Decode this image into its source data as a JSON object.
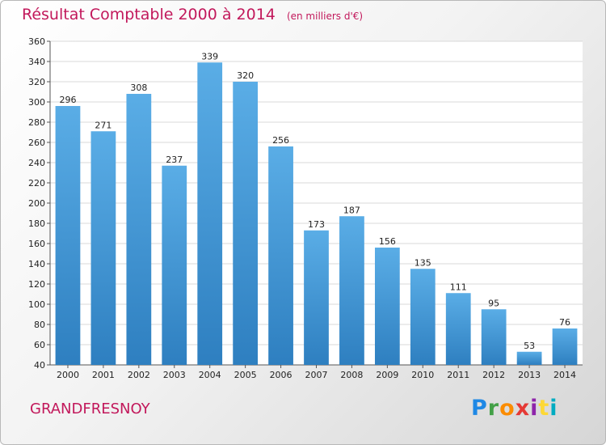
{
  "header": {
    "title": "Résultat Comptable 2000 à 2014",
    "unit": "(en milliers d'€)"
  },
  "footer": {
    "commune": "GRANDFRESNOY",
    "logo": [
      "P",
      "r",
      "o",
      "x",
      "i",
      "t",
      "i"
    ]
  },
  "colors": {
    "title": "#c2185b",
    "bar_top": "#5aade6",
    "bar_bottom": "#2e7fc0"
  },
  "chart_data": {
    "type": "bar",
    "title": "Résultat Comptable 2000 à 2014",
    "subtitle": "(en milliers d'€)",
    "xlabel": "",
    "ylabel": "",
    "categories": [
      "2000",
      "2001",
      "2002",
      "2003",
      "2004",
      "2005",
      "2006",
      "2007",
      "2008",
      "2009",
      "2010",
      "2011",
      "2012",
      "2013",
      "2014"
    ],
    "values": [
      296,
      271,
      308,
      237,
      339,
      320,
      256,
      173,
      187,
      156,
      135,
      111,
      95,
      53,
      76
    ],
    "ylim": [
      40,
      360
    ],
    "yticks": [
      40,
      60,
      80,
      100,
      120,
      140,
      160,
      180,
      200,
      220,
      240,
      260,
      280,
      300,
      320,
      340,
      360
    ],
    "grid": true,
    "legend": "none"
  }
}
